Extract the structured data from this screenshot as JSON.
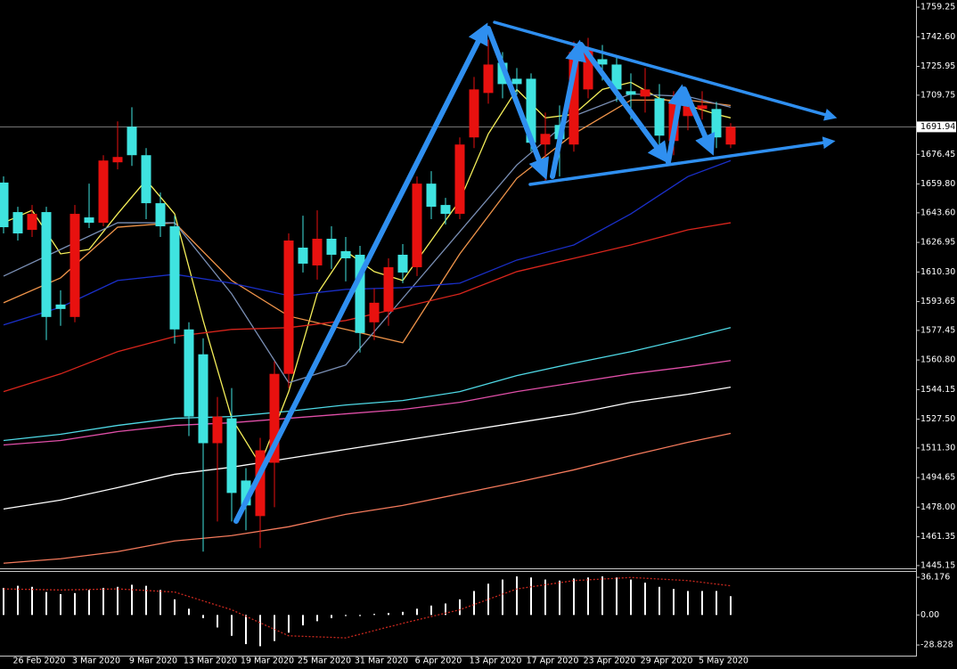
{
  "chart_data": [
    {
      "type": "candlestick",
      "categories": [
        null,
        null,
        "26 Feb 2020",
        null,
        null,
        null,
        "3 Mar 2020",
        null,
        null,
        null,
        "9 Mar 2020",
        null,
        null,
        null,
        "13 Mar 2020",
        null,
        null,
        null,
        "19 Mar 2020",
        null,
        null,
        null,
        "25 Mar 2020",
        null,
        null,
        null,
        "31 Mar 2020",
        null,
        null,
        null,
        "6 Apr 2020",
        null,
        null,
        null,
        "13 Apr 2020",
        null,
        null,
        null,
        "17 Apr 2020",
        null,
        null,
        null,
        "23 Apr 2020",
        null,
        null,
        null,
        "29 Apr 2020",
        null,
        null,
        null,
        "5 May 2020",
        null
      ],
      "open": [
        1660.6,
        1644,
        1634,
        1644,
        1592,
        1585,
        1641,
        1638,
        1672,
        1692,
        1676,
        1649,
        1636,
        1578,
        1564,
        1514,
        1528,
        1493,
        1473,
        1503,
        1553,
        1624,
        1614,
        1629,
        1622,
        1620,
        1582,
        1588,
        1620,
        1613,
        1660,
        1648,
        1643,
        1686,
        1711,
        1728,
        1719,
        1719,
        1682,
        1693,
        1682,
        1713,
        1730,
        1727,
        1712,
        1709,
        1708,
        1684,
        1698,
        1702,
        1702,
        1682
      ],
      "high": [
        1664.1,
        1647,
        1648,
        1647,
        1600,
        1648,
        1660,
        1676,
        1695,
        1703,
        1680,
        1655,
        1642,
        1582,
        1573,
        1540,
        1545,
        1500,
        1517,
        1560,
        1632,
        1642,
        1645,
        1636,
        1630,
        1625,
        1601,
        1618,
        1626,
        1664,
        1667,
        1652,
        1686,
        1720,
        1741,
        1734,
        1725,
        1722,
        1700,
        1704,
        1740,
        1742,
        1738,
        1731,
        1722,
        1725,
        1716,
        1712,
        1710,
        1712,
        1706,
        1694
      ],
      "low": [
        1632,
        1628,
        1630,
        1572,
        1580,
        1582,
        1635,
        1636,
        1668,
        1670,
        1640,
        1630,
        1570,
        1518,
        1453,
        1470,
        1470,
        1465,
        1455,
        1478,
        1545,
        1610,
        1606,
        1612,
        1605,
        1565,
        1572,
        1580,
        1604,
        1608,
        1640,
        1637,
        1640,
        1680,
        1705,
        1708,
        1710,
        1678,
        1660,
        1664,
        1678,
        1708,
        1718,
        1706,
        1696,
        1700,
        1680,
        1676,
        1690,
        1696,
        1680,
        1680
      ],
      "close": [
        1635.5,
        1632,
        1643,
        1585,
        1589.5,
        1643,
        1638,
        1673,
        1675,
        1676,
        1649,
        1636,
        1578,
        1529,
        1514,
        1529,
        1486,
        1479,
        1510,
        1553,
        1628,
        1615,
        1629,
        1620,
        1618,
        1576,
        1593,
        1613,
        1610,
        1660,
        1647,
        1643,
        1682,
        1713,
        1727,
        1716,
        1716,
        1683,
        1688,
        1685,
        1734,
        1736,
        1727,
        1713,
        1710,
        1713,
        1687,
        1706,
        1704,
        1704,
        1686,
        1691.94
      ],
      "up_color": "#e8110f",
      "down_color": "#3fe3e0",
      "ylim": [
        1443.6,
        1763.3
      ],
      "yticks": [
        1759.25,
        {
          "value": 1742.6,
          "label": "1742.60"
        },
        1725.95,
        1709.75,
        1676.45,
        {
          "value": 1659.8,
          "label": "1659.80"
        },
        {
          "value": 1643.6,
          "label": "1643.60"
        },
        1626.95,
        {
          "value": 1610.3,
          "label": "1610.30"
        },
        1593.65,
        1577.45,
        {
          "value": 1560.8,
          "label": "1560.80"
        },
        1544.15,
        {
          "value": 1527.5,
          "label": "1527.50"
        },
        {
          "value": 1511.3,
          "label": "1511.30"
        },
        1494.65,
        {
          "value": 1478,
          "label": "1478.00"
        },
        1461.35,
        1445.15
      ],
      "current_price": 1691.94,
      "series": [
        {
          "color": "#f5ef5a",
          "x": [
            0,
            2,
            4,
            6,
            8,
            10,
            12,
            14,
            16,
            18,
            20,
            22,
            24,
            26,
            28,
            30,
            32,
            34,
            36,
            38,
            40,
            42,
            44,
            46,
            48,
            50,
            51
          ],
          "values": [
            1638,
            1645,
            1620.5,
            1623,
            1643,
            1662,
            1643,
            1583,
            1528,
            1502,
            1543,
            1598,
            1622,
            1610.5,
            1605.5,
            1628,
            1650.5,
            1688,
            1713,
            1697,
            1699,
            1713,
            1717,
            1708,
            1704,
            1699,
            1697
          ]
        },
        {
          "color": "#f0944a",
          "x": [
            0,
            4,
            8,
            12,
            16,
            20,
            24,
            28,
            32,
            36,
            40,
            44,
            48,
            51
          ],
          "values": [
            1593,
            1607,
            1635.5,
            1638,
            1605.5,
            1585.5,
            1578,
            1570.5,
            1620.5,
            1663,
            1688,
            1707,
            1707,
            1704
          ]
        },
        {
          "color": "#7a8fb5",
          "x": [
            0,
            4,
            8,
            12,
            16,
            20,
            24,
            28,
            32,
            36,
            40,
            44,
            48,
            51
          ],
          "values": [
            1608,
            1623,
            1638,
            1638,
            1598,
            1548,
            1558,
            1595.5,
            1633,
            1670.5,
            1698,
            1710.5,
            1709,
            1703
          ]
        },
        {
          "color": "#1a2fc8",
          "x": [
            0,
            4,
            8,
            12,
            16,
            20,
            24,
            28,
            32,
            36,
            40,
            44,
            48,
            51
          ],
          "values": [
            1580.5,
            1590.5,
            1605.5,
            1609,
            1604,
            1597,
            1600.5,
            1601.5,
            1604,
            1617,
            1625.5,
            1643,
            1664,
            1673
          ]
        },
        {
          "color": "#d8251c",
          "x": [
            0,
            4,
            8,
            12,
            16,
            20,
            24,
            28,
            32,
            36,
            40,
            44,
            48,
            51
          ],
          "values": [
            1543,
            1553,
            1565.5,
            1574,
            1578,
            1579,
            1583,
            1590.5,
            1598,
            1610.5,
            1618,
            1625.5,
            1634,
            1638
          ]
        },
        {
          "color": "#4fd9e6",
          "x": [
            0,
            4,
            8,
            12,
            16,
            20,
            24,
            28,
            32,
            36,
            40,
            44,
            48,
            51
          ],
          "values": [
            1515.5,
            1519,
            1524,
            1528,
            1529,
            1532,
            1535.5,
            1538,
            1543,
            1552,
            1559,
            1565.5,
            1573,
            1579
          ]
        },
        {
          "color": "#e04fa8",
          "x": [
            0,
            4,
            8,
            12,
            16,
            20,
            24,
            28,
            32,
            36,
            40,
            44,
            48,
            51
          ],
          "values": [
            1513,
            1515.5,
            1520.5,
            1524,
            1525.5,
            1528,
            1530.5,
            1533,
            1537,
            1543,
            1548,
            1553,
            1557,
            1560.5
          ]
        },
        {
          "color": "#ffffff",
          "x": [
            0,
            4,
            8,
            12,
            16,
            20,
            24,
            28,
            32,
            36,
            40,
            44,
            48,
            51
          ],
          "values": [
            1477,
            1482,
            1489,
            1496.5,
            1500.5,
            1505.5,
            1510.5,
            1515.5,
            1520.5,
            1525.5,
            1530.5,
            1537,
            1541.5,
            1545.5
          ]
        },
        {
          "color": "#f47a5c",
          "x": [
            0,
            4,
            8,
            12,
            16,
            20,
            24,
            28,
            32,
            36,
            40,
            44,
            48,
            51
          ],
          "values": [
            1446.5,
            1449,
            1453,
            1459,
            1462,
            1467,
            1474,
            1479,
            1485.5,
            1492,
            1499,
            1507,
            1514.5,
            1519.5
          ]
        }
      ]
    },
    {
      "type": "bar",
      "values": [
        26,
        28,
        27,
        22,
        20,
        21,
        24,
        26,
        27,
        29,
        28,
        24,
        15,
        6,
        -3,
        -12,
        -20,
        -28,
        -30,
        -25,
        -17,
        -10,
        -6,
        -3,
        -1,
        -1,
        1,
        2,
        3,
        6,
        9,
        11,
        15,
        23,
        30,
        34,
        37,
        36,
        34,
        33,
        35,
        36,
        37,
        36,
        34,
        31,
        27,
        25,
        23,
        23,
        23,
        18
      ],
      "color": "#ffffff",
      "ylim": [
        -39.9,
        42.2
      ],
      "yticks": [
        36.176,
        {
          "value": 0,
          "label": "0.00"
        },
        -28.828
      ],
      "series": [
        {
          "color": "#c8281e",
          "style": "dotted",
          "x": [
            0,
            4,
            8,
            12,
            16,
            20,
            24,
            28,
            32,
            36,
            40,
            44,
            48,
            51
          ],
          "values": [
            25,
            24,
            25,
            22,
            5,
            -20,
            -22,
            -8,
            5,
            25,
            33,
            36,
            33,
            28
          ]
        }
      ]
    }
  ]
}
